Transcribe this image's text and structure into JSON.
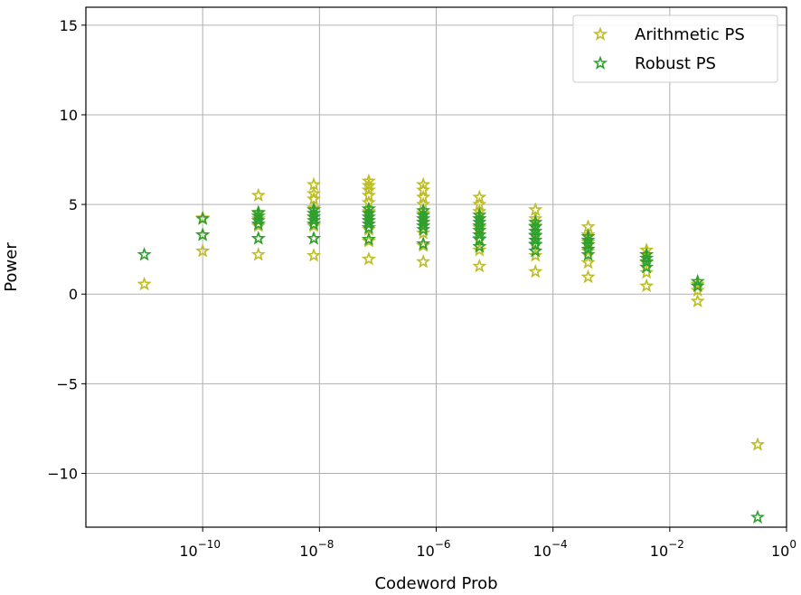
{
  "chart_data": {
    "type": "scatter",
    "title": "",
    "xlabel": "Codeword Prob",
    "ylabel": "Power",
    "xscale": "log",
    "xlim": [
      1e-12,
      1
    ],
    "ylim": [
      -13,
      16
    ],
    "grid": true,
    "legend_position": "top-right",
    "x_ticks": [
      {
        "value": 1e-10,
        "base": "10",
        "exp": "−10"
      },
      {
        "value": 1e-08,
        "base": "10",
        "exp": "−8"
      },
      {
        "value": 1e-06,
        "base": "10",
        "exp": "−6"
      },
      {
        "value": 0.0001,
        "base": "10",
        "exp": "−4"
      },
      {
        "value": 0.01,
        "base": "10",
        "exp": "−2"
      },
      {
        "value": 1,
        "base": "10",
        "exp": "0"
      }
    ],
    "y_ticks": [
      {
        "value": 15,
        "label": "15"
      },
      {
        "value": 10,
        "label": "10"
      },
      {
        "value": 5,
        "label": "5"
      },
      {
        "value": 0,
        "label": "0"
      },
      {
        "value": -5,
        "label": "−5"
      },
      {
        "value": -10,
        "label": "−10"
      }
    ],
    "marker": "star",
    "series": [
      {
        "name": "Arithmetic PS",
        "color": "#bcbd22",
        "points": [
          {
            "x": 1e-11,
            "y": 0.55
          },
          {
            "x": 1e-10,
            "y": 2.4
          },
          {
            "x": 1e-10,
            "y": 3.3
          },
          {
            "x": 1e-10,
            "y": 4.25
          },
          {
            "x": 9e-10,
            "y": 2.2
          },
          {
            "x": 9e-10,
            "y": 3.1
          },
          {
            "x": 9e-10,
            "y": 3.8
          },
          {
            "x": 9e-10,
            "y": 4.2
          },
          {
            "x": 9e-10,
            "y": 4.5
          },
          {
            "x": 9e-10,
            "y": 5.5
          },
          {
            "x": 8e-09,
            "y": 2.15
          },
          {
            "x": 8e-09,
            "y": 3.1
          },
          {
            "x": 8e-09,
            "y": 3.8
          },
          {
            "x": 8e-09,
            "y": 4.3
          },
          {
            "x": 8e-09,
            "y": 4.8
          },
          {
            "x": 8e-09,
            "y": 5.3
          },
          {
            "x": 8e-09,
            "y": 5.6
          },
          {
            "x": 8e-09,
            "y": 6.1
          },
          {
            "x": 7e-08,
            "y": 1.95
          },
          {
            "x": 7e-08,
            "y": 2.95
          },
          {
            "x": 7e-08,
            "y": 3.6
          },
          {
            "x": 7e-08,
            "y": 4.1
          },
          {
            "x": 7e-08,
            "y": 4.6
          },
          {
            "x": 7e-08,
            "y": 5.1
          },
          {
            "x": 7e-08,
            "y": 5.5
          },
          {
            "x": 7e-08,
            "y": 5.8
          },
          {
            "x": 7e-08,
            "y": 6.05
          },
          {
            "x": 7e-08,
            "y": 6.3
          },
          {
            "x": 6e-07,
            "y": 1.8
          },
          {
            "x": 6e-07,
            "y": 2.7
          },
          {
            "x": 6e-07,
            "y": 3.4
          },
          {
            "x": 6e-07,
            "y": 4.0
          },
          {
            "x": 6e-07,
            "y": 4.5
          },
          {
            "x": 6e-07,
            "y": 5.0
          },
          {
            "x": 6e-07,
            "y": 5.4
          },
          {
            "x": 6e-07,
            "y": 5.8
          },
          {
            "x": 6e-07,
            "y": 6.1
          },
          {
            "x": 5.5e-06,
            "y": 1.55
          },
          {
            "x": 5.5e-06,
            "y": 2.45
          },
          {
            "x": 5.5e-06,
            "y": 3.1
          },
          {
            "x": 5.5e-06,
            "y": 3.7
          },
          {
            "x": 5.5e-06,
            "y": 4.2
          },
          {
            "x": 5.5e-06,
            "y": 4.6
          },
          {
            "x": 5.5e-06,
            "y": 5.0
          },
          {
            "x": 5.5e-06,
            "y": 5.4
          },
          {
            "x": 5e-05,
            "y": 1.25
          },
          {
            "x": 5e-05,
            "y": 2.15
          },
          {
            "x": 5e-05,
            "y": 2.8
          },
          {
            "x": 5e-05,
            "y": 3.3
          },
          {
            "x": 5e-05,
            "y": 3.8
          },
          {
            "x": 5e-05,
            "y": 4.2
          },
          {
            "x": 5e-05,
            "y": 4.7
          },
          {
            "x": 0.0004,
            "y": 0.95
          },
          {
            "x": 0.0004,
            "y": 1.75
          },
          {
            "x": 0.0004,
            "y": 2.4
          },
          {
            "x": 0.0004,
            "y": 2.9
          },
          {
            "x": 0.0004,
            "y": 3.3
          },
          {
            "x": 0.0004,
            "y": 3.75
          },
          {
            "x": 0.004,
            "y": 0.45
          },
          {
            "x": 0.004,
            "y": 1.2
          },
          {
            "x": 0.004,
            "y": 1.75
          },
          {
            "x": 0.004,
            "y": 2.2
          },
          {
            "x": 0.004,
            "y": 2.45
          },
          {
            "x": 0.03,
            "y": -0.4
          },
          {
            "x": 0.03,
            "y": 0.2
          },
          {
            "x": 0.03,
            "y": 0.55
          },
          {
            "x": 0.32,
            "y": -8.4
          }
        ]
      },
      {
        "name": "Robust PS",
        "color": "#2ca02c",
        "points": [
          {
            "x": 1e-11,
            "y": 2.2
          },
          {
            "x": 1e-10,
            "y": 3.3
          },
          {
            "x": 1e-10,
            "y": 4.2
          },
          {
            "x": 9e-10,
            "y": 3.1
          },
          {
            "x": 9e-10,
            "y": 3.9
          },
          {
            "x": 9e-10,
            "y": 4.1
          },
          {
            "x": 9e-10,
            "y": 4.35
          },
          {
            "x": 9e-10,
            "y": 4.55
          },
          {
            "x": 8e-09,
            "y": 3.1
          },
          {
            "x": 8e-09,
            "y": 3.9
          },
          {
            "x": 8e-09,
            "y": 4.1
          },
          {
            "x": 8e-09,
            "y": 4.3
          },
          {
            "x": 8e-09,
            "y": 4.5
          },
          {
            "x": 8e-09,
            "y": 4.7
          },
          {
            "x": 7e-08,
            "y": 3.05
          },
          {
            "x": 7e-08,
            "y": 3.7
          },
          {
            "x": 7e-08,
            "y": 3.9
          },
          {
            "x": 7e-08,
            "y": 4.1
          },
          {
            "x": 7e-08,
            "y": 4.3
          },
          {
            "x": 7e-08,
            "y": 4.5
          },
          {
            "x": 7e-08,
            "y": 4.75
          },
          {
            "x": 6e-07,
            "y": 2.8
          },
          {
            "x": 6e-07,
            "y": 3.6
          },
          {
            "x": 6e-07,
            "y": 3.8
          },
          {
            "x": 6e-07,
            "y": 4.0
          },
          {
            "x": 6e-07,
            "y": 4.2
          },
          {
            "x": 6e-07,
            "y": 4.4
          },
          {
            "x": 6e-07,
            "y": 4.65
          },
          {
            "x": 5.5e-06,
            "y": 2.65
          },
          {
            "x": 5.5e-06,
            "y": 3.05
          },
          {
            "x": 5.5e-06,
            "y": 3.3
          },
          {
            "x": 5.5e-06,
            "y": 3.55
          },
          {
            "x": 5.5e-06,
            "y": 3.8
          },
          {
            "x": 5.5e-06,
            "y": 4.0
          },
          {
            "x": 5.5e-06,
            "y": 4.2
          },
          {
            "x": 5.5e-06,
            "y": 4.4
          },
          {
            "x": 5e-05,
            "y": 2.4
          },
          {
            "x": 5e-05,
            "y": 2.75
          },
          {
            "x": 5e-05,
            "y": 3.0
          },
          {
            "x": 5e-05,
            "y": 3.25
          },
          {
            "x": 5e-05,
            "y": 3.5
          },
          {
            "x": 5e-05,
            "y": 3.75
          },
          {
            "x": 5e-05,
            "y": 4.0
          },
          {
            "x": 0.0004,
            "y": 2.2
          },
          {
            "x": 0.0004,
            "y": 2.5
          },
          {
            "x": 0.0004,
            "y": 2.75
          },
          {
            "x": 0.0004,
            "y": 3.0
          },
          {
            "x": 0.0004,
            "y": 3.2
          },
          {
            "x": 0.004,
            "y": 1.5
          },
          {
            "x": 0.004,
            "y": 1.8
          },
          {
            "x": 0.004,
            "y": 2.0
          },
          {
            "x": 0.004,
            "y": 2.2
          },
          {
            "x": 0.03,
            "y": 0.45
          },
          {
            "x": 0.03,
            "y": 0.7
          },
          {
            "x": 0.32,
            "y": -12.45
          }
        ]
      }
    ]
  }
}
